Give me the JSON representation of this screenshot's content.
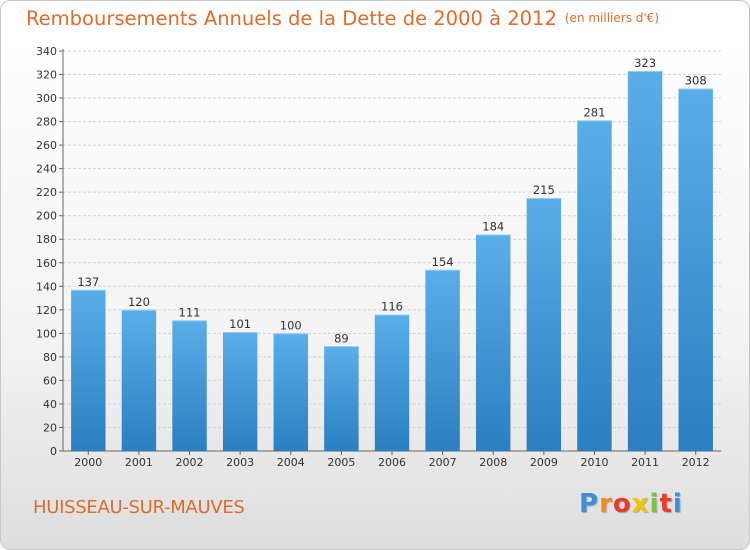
{
  "chart_data": {
    "type": "bar",
    "title": "Remboursements Annuels de la Dette de 2000 à 2012",
    "unit_note": "(en milliers d'€)",
    "xlabel": "",
    "ylabel": "",
    "categories": [
      "2000",
      "2001",
      "2002",
      "2003",
      "2004",
      "2005",
      "2006",
      "2007",
      "2008",
      "2009",
      "2010",
      "2011",
      "2012"
    ],
    "values": [
      137,
      120,
      111,
      101,
      100,
      89,
      116,
      154,
      184,
      215,
      281,
      323,
      308
    ],
    "ylim": [
      0,
      340
    ],
    "ytick_step": 20,
    "grid": true,
    "bar_color_top": "#5aaee8",
    "bar_color_bottom": "#2a7fc2"
  },
  "commune": "HUISSEAU-SUR-MAUVES",
  "logo": {
    "letters": [
      "P",
      "r",
      "o",
      "x",
      "i",
      "t",
      "i"
    ],
    "colors": [
      "#3f8fd8",
      "#f08a1c",
      "#e83c2a",
      "#f5c400",
      "#7cc242",
      "#e83c2a",
      "#3f8fd8"
    ]
  },
  "colors": {
    "title": "#de6c2a",
    "grid": "#d4d4d4",
    "axis": "#666666"
  }
}
